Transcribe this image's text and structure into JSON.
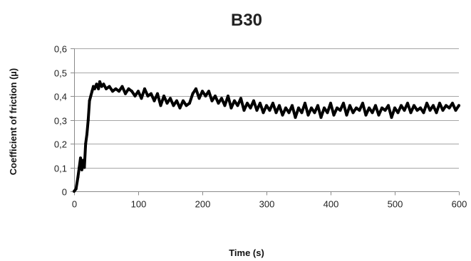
{
  "chart_data": {
    "type": "line",
    "title": "B30",
    "xlabel": "Time (s)",
    "ylabel": "Coefficient of friction (µ)",
    "xlim": [
      0,
      600
    ],
    "ylim": [
      0,
      0.6
    ],
    "xticks": [
      0,
      100,
      200,
      300,
      400,
      500,
      600
    ],
    "xtick_labels": [
      "0",
      "100",
      "200",
      "300",
      "400",
      "500",
      "600"
    ],
    "yticks": [
      0,
      0.1,
      0.2,
      0.3,
      0.4,
      0.5,
      0.6
    ],
    "ytick_labels": [
      "0",
      "0,1",
      "0,2",
      "0,3",
      "0,4",
      "0,5",
      "0,6"
    ],
    "grid": "horizontal",
    "legend": "none",
    "series": [
      {
        "color": "#000000",
        "x": [
          0,
          3,
          6,
          8,
          10,
          12,
          14,
          16,
          18,
          20,
          22,
          24,
          26,
          28,
          30,
          32,
          35,
          38,
          40,
          43,
          46,
          50,
          55,
          60,
          65,
          70,
          75,
          80,
          85,
          90,
          95,
          100,
          105,
          110,
          115,
          120,
          125,
          130,
          135,
          140,
          145,
          150,
          155,
          160,
          165,
          170,
          175,
          180,
          185,
          190,
          195,
          200,
          205,
          210,
          215,
          220,
          225,
          230,
          235,
          240,
          245,
          250,
          255,
          260,
          265,
          270,
          275,
          280,
          285,
          290,
          295,
          300,
          305,
          310,
          315,
          320,
          325,
          330,
          335,
          340,
          345,
          350,
          355,
          360,
          365,
          370,
          375,
          380,
          385,
          390,
          395,
          400,
          405,
          410,
          415,
          420,
          425,
          430,
          435,
          440,
          445,
          450,
          455,
          460,
          465,
          470,
          475,
          480,
          485,
          490,
          495,
          500,
          505,
          510,
          515,
          520,
          525,
          530,
          535,
          540,
          545,
          550,
          555,
          560,
          565,
          570,
          575,
          580,
          585,
          590,
          595,
          600
        ],
        "y": [
          0,
          0.01,
          0.06,
          0.1,
          0.14,
          0.09,
          0.13,
          0.1,
          0.2,
          0.24,
          0.3,
          0.38,
          0.4,
          0.42,
          0.44,
          0.43,
          0.45,
          0.43,
          0.46,
          0.44,
          0.45,
          0.43,
          0.44,
          0.42,
          0.43,
          0.42,
          0.44,
          0.41,
          0.43,
          0.42,
          0.4,
          0.42,
          0.39,
          0.43,
          0.4,
          0.41,
          0.38,
          0.41,
          0.36,
          0.4,
          0.37,
          0.39,
          0.36,
          0.38,
          0.35,
          0.38,
          0.36,
          0.37,
          0.41,
          0.43,
          0.39,
          0.42,
          0.4,
          0.42,
          0.38,
          0.4,
          0.37,
          0.39,
          0.36,
          0.4,
          0.35,
          0.38,
          0.36,
          0.39,
          0.34,
          0.37,
          0.35,
          0.38,
          0.34,
          0.37,
          0.33,
          0.36,
          0.34,
          0.37,
          0.33,
          0.36,
          0.32,
          0.35,
          0.33,
          0.36,
          0.31,
          0.35,
          0.33,
          0.37,
          0.32,
          0.35,
          0.33,
          0.36,
          0.31,
          0.35,
          0.33,
          0.37,
          0.32,
          0.35,
          0.34,
          0.37,
          0.32,
          0.36,
          0.33,
          0.35,
          0.34,
          0.37,
          0.32,
          0.35,
          0.33,
          0.36,
          0.32,
          0.35,
          0.34,
          0.36,
          0.31,
          0.35,
          0.33,
          0.36,
          0.34,
          0.37,
          0.33,
          0.36,
          0.34,
          0.35,
          0.33,
          0.37,
          0.34,
          0.36,
          0.33,
          0.37,
          0.34,
          0.36,
          0.35,
          0.37,
          0.34,
          0.36
        ]
      }
    ]
  }
}
